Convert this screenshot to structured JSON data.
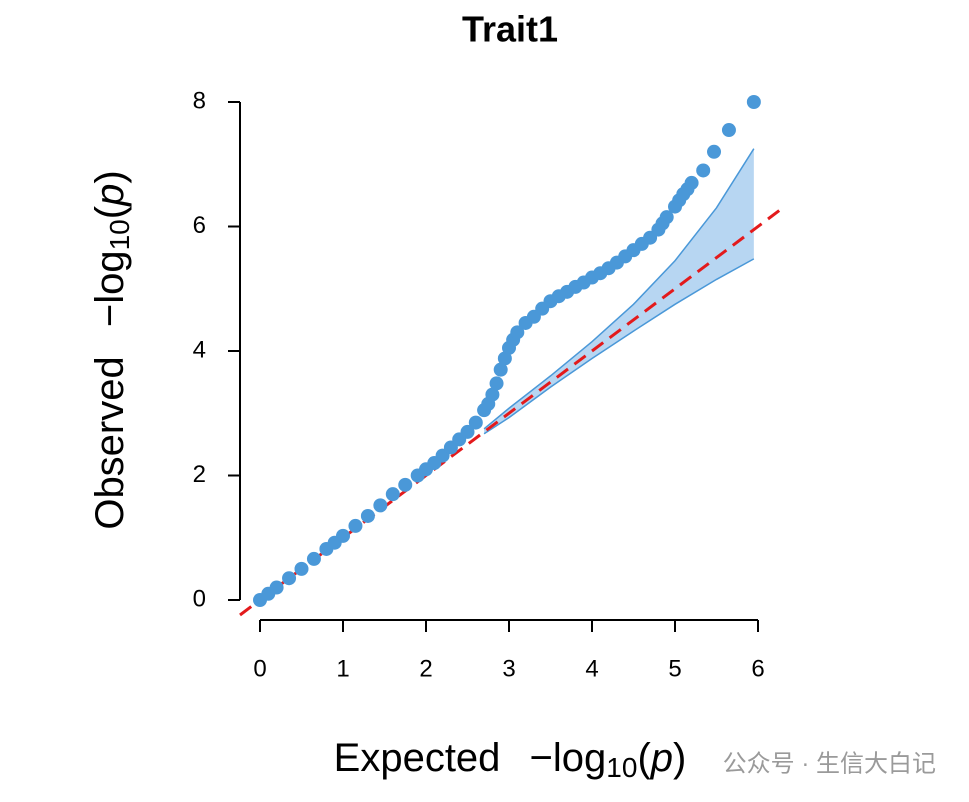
{
  "chart_data": {
    "type": "qq",
    "title": "Trait1",
    "xlabel": {
      "text": "Expected",
      "log": "−log",
      "sub": "10",
      "open": "(",
      "p": "p",
      "close": ")"
    },
    "ylabel": {
      "text": "Observed",
      "log": "−log",
      "sub": "10",
      "open": "(",
      "p": "p",
      "close": ")"
    },
    "xlim": [
      0,
      6
    ],
    "ylim": [
      0,
      8
    ],
    "xticks": [
      0,
      1,
      2,
      3,
      4,
      5,
      6
    ],
    "yticks": [
      0,
      2,
      4,
      6,
      8
    ],
    "points": {
      "color": "#4a98d8",
      "x": [
        0,
        0.1,
        0.2,
        0.35,
        0.5,
        0.65,
        0.8,
        0.9,
        1.0,
        1.15,
        1.3,
        1.45,
        1.6,
        1.75,
        1.9,
        2.0,
        2.1,
        2.2,
        2.3,
        2.4,
        2.5,
        2.6,
        2.7,
        2.75,
        2.8,
        2.85,
        2.9,
        2.95,
        3.0,
        3.05,
        3.1,
        3.2,
        3.3,
        3.4,
        3.5,
        3.6,
        3.7,
        3.8,
        3.9,
        4.0,
        4.1,
        4.2,
        4.3,
        4.4,
        4.5,
        4.6,
        4.7,
        4.8,
        4.85,
        4.9,
        5.0,
        5.05,
        5.1,
        5.15,
        5.2,
        5.34,
        5.47,
        5.65,
        5.95
      ],
      "y": [
        0,
        0.1,
        0.2,
        0.35,
        0.5,
        0.66,
        0.82,
        0.92,
        1.03,
        1.19,
        1.35,
        1.52,
        1.7,
        1.85,
        2.0,
        2.1,
        2.2,
        2.32,
        2.45,
        2.58,
        2.7,
        2.85,
        3.05,
        3.15,
        3.3,
        3.48,
        3.7,
        3.88,
        4.05,
        4.18,
        4.3,
        4.45,
        4.55,
        4.68,
        4.8,
        4.88,
        4.95,
        5.03,
        5.1,
        5.18,
        5.25,
        5.33,
        5.42,
        5.52,
        5.62,
        5.72,
        5.82,
        5.95,
        6.05,
        6.15,
        6.32,
        6.42,
        6.52,
        6.6,
        6.7,
        6.9,
        7.2,
        7.55,
        8.0
      ]
    },
    "band": {
      "color": "#4a98d8",
      "fill": "#b7d6f2",
      "x": [
        2.7,
        3,
        3.5,
        4,
        4.5,
        5,
        5.5,
        5.95
      ],
      "upper": [
        2.75,
        3.08,
        3.6,
        4.15,
        4.75,
        5.45,
        6.3,
        7.25
      ],
      "lower": [
        2.67,
        2.93,
        3.42,
        3.88,
        4.32,
        4.75,
        5.15,
        5.48
      ]
    },
    "reference_line": {
      "slope": 1,
      "intercept": 0,
      "color": "#e31a1c"
    },
    "watermark": "公众号 · 生信大白记"
  }
}
